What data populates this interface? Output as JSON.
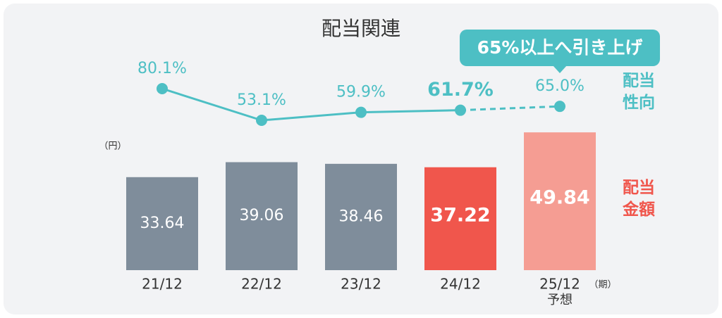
{
  "chart_data": {
    "type": "bar",
    "title": "配当関連",
    "unit_label": "（円）",
    "period_label": "（期）",
    "categories": [
      "21/12",
      "22/12",
      "23/12",
      "24/12",
      "25/12"
    ],
    "category_sublabels": [
      null,
      null,
      null,
      null,
      "予想"
    ],
    "emphasis_index": 3,
    "forecast_index": 4,
    "annotation": "65%以上へ引き上げ",
    "series": [
      {
        "name": "配当金額",
        "type": "bar",
        "color": "#f0564c",
        "colors": [
          "#7f8d9b",
          "#7f8d9b",
          "#7f8d9b",
          "#f0564c",
          "#f59d93"
        ],
        "values": [
          33.64,
          39.06,
          38.46,
          37.22,
          49.84
        ]
      },
      {
        "name": "配当性向",
        "type": "line",
        "color": "#4dbfc4",
        "values": [
          80.1,
          53.1,
          59.9,
          61.7,
          65.0
        ],
        "value_labels": [
          "80.1%",
          "53.1%",
          "59.9%",
          "61.7%",
          "65.0%"
        ]
      }
    ]
  }
}
